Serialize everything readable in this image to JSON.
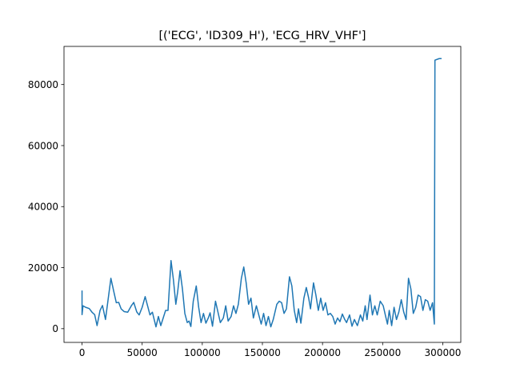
{
  "chart_data": {
    "type": "line",
    "title": "[('ECG', 'ID309_H'), 'ECG_HRV_VHF']",
    "xlabel": "",
    "ylabel": "",
    "xlim": [
      -15000,
      315000
    ],
    "ylim": [
      -4500,
      92500
    ],
    "grid": false,
    "x_ticks": [
      0,
      50000,
      100000,
      150000,
      200000,
      250000,
      300000
    ],
    "x_tick_labels": [
      "0",
      "50000",
      "100000",
      "150000",
      "200000",
      "250000",
      "300000"
    ],
    "y_ticks": [
      0,
      20000,
      40000,
      60000,
      80000
    ],
    "y_tick_labels": [
      "0",
      "20000",
      "40000",
      "60000",
      "80000"
    ],
    "series": [
      {
        "color": "#1f77b4",
        "points": [
          [
            0,
            12300
          ],
          [
            0,
            4600
          ],
          [
            800,
            7500
          ],
          [
            3000,
            7000
          ],
          [
            6000,
            6600
          ],
          [
            8500,
            5300
          ],
          [
            10500,
            4600
          ],
          [
            12500,
            1000
          ],
          [
            15000,
            6000
          ],
          [
            17000,
            7600
          ],
          [
            19500,
            3000
          ],
          [
            21500,
            9000
          ],
          [
            24000,
            16500
          ],
          [
            26500,
            12000
          ],
          [
            28500,
            8500
          ],
          [
            30500,
            8600
          ],
          [
            32500,
            6500
          ],
          [
            35000,
            5600
          ],
          [
            38000,
            5400
          ],
          [
            41000,
            7500
          ],
          [
            43000,
            8600
          ],
          [
            45500,
            5500
          ],
          [
            47500,
            4500
          ],
          [
            50000,
            7000
          ],
          [
            52500,
            10500
          ],
          [
            54500,
            7500
          ],
          [
            56500,
            4500
          ],
          [
            58500,
            5400
          ],
          [
            60000,
            3000
          ],
          [
            61500,
            600
          ],
          [
            63500,
            4000
          ],
          [
            65500,
            1000
          ],
          [
            67500,
            3500
          ],
          [
            69500,
            6000
          ],
          [
            71500,
            6000
          ],
          [
            74000,
            22300
          ],
          [
            76000,
            16000
          ],
          [
            78000,
            8000
          ],
          [
            79500,
            12000
          ],
          [
            81500,
            19000
          ],
          [
            83500,
            13000
          ],
          [
            85500,
            5000
          ],
          [
            87500,
            2000
          ],
          [
            89000,
            2500
          ],
          [
            90500,
            700
          ],
          [
            92500,
            9000
          ],
          [
            95000,
            14000
          ],
          [
            97000,
            7000
          ],
          [
            99000,
            2000
          ],
          [
            101000,
            5000
          ],
          [
            103000,
            1800
          ],
          [
            105000,
            3500
          ],
          [
            106500,
            5200
          ],
          [
            108500,
            800
          ],
          [
            111000,
            9000
          ],
          [
            113000,
            5500
          ],
          [
            115000,
            2000
          ],
          [
            117500,
            3500
          ],
          [
            119500,
            7500
          ],
          [
            121500,
            2500
          ],
          [
            124000,
            4000
          ],
          [
            126000,
            7500
          ],
          [
            128000,
            5000
          ],
          [
            130000,
            8000
          ],
          [
            132500,
            16500
          ],
          [
            134500,
            20200
          ],
          [
            136500,
            15000
          ],
          [
            138500,
            8000
          ],
          [
            140500,
            10000
          ],
          [
            142500,
            3500
          ],
          [
            145000,
            7500
          ],
          [
            147000,
            4500
          ],
          [
            149000,
            1500
          ],
          [
            151000,
            5000
          ],
          [
            153000,
            1000
          ],
          [
            155000,
            4000
          ],
          [
            157000,
            600
          ],
          [
            159000,
            3000
          ],
          [
            162000,
            8000
          ],
          [
            164000,
            9000
          ],
          [
            166000,
            8500
          ],
          [
            168000,
            5000
          ],
          [
            170000,
            6500
          ],
          [
            172500,
            17000
          ],
          [
            174500,
            14000
          ],
          [
            176500,
            6000
          ],
          [
            178500,
            2000
          ],
          [
            180000,
            6500
          ],
          [
            182000,
            1800
          ],
          [
            184500,
            10000
          ],
          [
            186500,
            13500
          ],
          [
            188500,
            10000
          ],
          [
            190000,
            6500
          ],
          [
            192500,
            15000
          ],
          [
            194500,
            11000
          ],
          [
            196500,
            6000
          ],
          [
            198500,
            10000
          ],
          [
            200500,
            6000
          ],
          [
            202500,
            8500
          ],
          [
            204500,
            4500
          ],
          [
            206500,
            5000
          ],
          [
            208500,
            4000
          ],
          [
            210500,
            1500
          ],
          [
            212500,
            3500
          ],
          [
            214500,
            2300
          ],
          [
            216500,
            4800
          ],
          [
            218500,
            3000
          ],
          [
            220000,
            2000
          ],
          [
            222500,
            4500
          ],
          [
            224500,
            800
          ],
          [
            226500,
            3000
          ],
          [
            229000,
            1000
          ],
          [
            231500,
            4500
          ],
          [
            233500,
            2500
          ],
          [
            235500,
            7500
          ],
          [
            237000,
            3000
          ],
          [
            239500,
            11000
          ],
          [
            241500,
            4500
          ],
          [
            243500,
            7500
          ],
          [
            245500,
            4500
          ],
          [
            248000,
            9000
          ],
          [
            250500,
            7500
          ],
          [
            252500,
            4000
          ],
          [
            254000,
            1500
          ],
          [
            255500,
            6000
          ],
          [
            257500,
            1000
          ],
          [
            259500,
            7000
          ],
          [
            261500,
            3000
          ],
          [
            263500,
            5500
          ],
          [
            265500,
            9500
          ],
          [
            267500,
            5500
          ],
          [
            269500,
            3000
          ],
          [
            271500,
            16500
          ],
          [
            273500,
            13000
          ],
          [
            275500,
            5000
          ],
          [
            277500,
            7000
          ],
          [
            279500,
            11000
          ],
          [
            281500,
            10500
          ],
          [
            283500,
            6000
          ],
          [
            285500,
            9500
          ],
          [
            287500,
            9000
          ],
          [
            289500,
            6000
          ],
          [
            291500,
            8500
          ],
          [
            293000,
            1500
          ],
          [
            293500,
            88000
          ],
          [
            297000,
            88500
          ],
          [
            298500,
            88500
          ]
        ]
      }
    ]
  }
}
